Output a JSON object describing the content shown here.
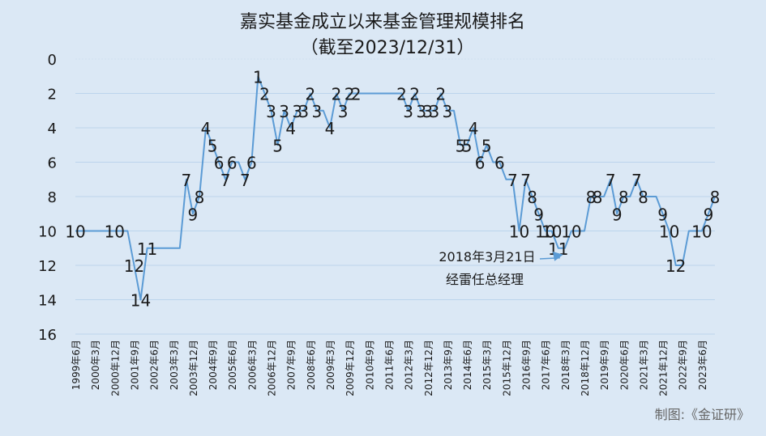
{
  "chart_data": {
    "type": "line",
    "title": "嘉实基金成立以来基金管理规模排名",
    "subtitle": "（截至2023/12/31）",
    "xlabel": "",
    "ylabel": "",
    "y_inverted": true,
    "ylim": [
      0,
      16
    ],
    "y_ticks": [
      0,
      2,
      4,
      6,
      8,
      10,
      12,
      14,
      16
    ],
    "grid": true,
    "legend": "none",
    "x_tick_labels": [
      "1999年6月",
      "2000年3月",
      "2000年12月",
      "2001年9月",
      "2002年6月",
      "2003年3月",
      "2003年12月",
      "2004年9月",
      "2005年6月",
      "2006年3月",
      "2006年12月",
      "2007年9月",
      "2008年6月",
      "2009年3月",
      "2009年12月",
      "2010年9月",
      "2011年6月",
      "2012年3月",
      "2012年12月",
      "2013年9月",
      "2014年6月",
      "2015年3月",
      "2015年12月",
      "2016年9月",
      "2017年6月",
      "2018年3月",
      "2018年12月",
      "2019年9月",
      "2020年6月",
      "2021年3月",
      "2021年12月",
      "2022年9月",
      "2023年6月"
    ],
    "series": [
      {
        "x": [
          "1999年6月",
          "1999年9月",
          "1999年12月",
          "2000年3月",
          "2000年6月",
          "2000年9月",
          "2000年12月",
          "2001年3月",
          "2001年6月",
          "2001年9月",
          "2001年12月",
          "2002年3月",
          "2002年6月",
          "2002年9月",
          "2002年12月",
          "2003年3月",
          "2003年6月",
          "2003年9月",
          "2003年12月",
          "2004年3月",
          "2004年6月",
          "2004年9月",
          "2004年12月",
          "2005年3月",
          "2005年6月",
          "2005年9月",
          "2005年12月",
          "2006年3月",
          "2006年6月",
          "2006年9月",
          "2006年12月",
          "2007年3月",
          "2007年6月",
          "2007年9月",
          "2007年12月",
          "2008年3月",
          "2008年6月",
          "2008年9月",
          "2008年12月",
          "2009年3月",
          "2009年6月",
          "2009年9月",
          "2009年12月",
          "2010年3月",
          "2010年6月",
          "2010年9月",
          "2010年12月",
          "2011年3月",
          "2011年6月",
          "2011年9月",
          "2011年12月",
          "2012年3月",
          "2012年6月",
          "2012年9月",
          "2012年12月",
          "2013年3月",
          "2013年6月",
          "2013年9月",
          "2013年12月",
          "2014年3月",
          "2014年6月",
          "2014年9月",
          "2014年12月",
          "2015年3月",
          "2015年6月",
          "2015年9月",
          "2015年12月",
          "2016年3月",
          "2016年6月",
          "2016年9月",
          "2016年12月",
          "2017年3月",
          "2017年6月",
          "2017年9月",
          "2017年12月",
          "2018年3月",
          "2018年6月",
          "2018年9月",
          "2018年12月",
          "2019年3月",
          "2019年6月",
          "2019年9月",
          "2019年12月",
          "2020年3月",
          "2020年6月",
          "2020年9月",
          "2020年12月",
          "2021年3月",
          "2021年6月",
          "2021年9月",
          "2021年12月",
          "2022年3月",
          "2022年6月",
          "2022年9月",
          "2022年12月",
          "2023年3月",
          "2023年6月",
          "2023年9月",
          "2023年12月"
        ],
        "values": [
          10,
          10,
          10,
          10,
          10,
          10,
          10,
          10,
          10,
          12,
          14,
          11,
          11,
          11,
          11,
          11,
          11,
          7,
          9,
          8,
          4,
          5,
          6,
          7,
          6,
          6,
          7,
          6,
          1,
          2,
          3,
          5,
          3,
          4,
          3,
          3,
          2,
          3,
          3,
          4,
          2,
          3,
          2,
          2,
          2,
          2,
          2,
          2,
          2,
          2,
          2,
          3,
          2,
          3,
          3,
          3,
          2,
          3,
          3,
          5,
          5,
          4,
          6,
          5,
          6,
          6,
          7,
          7,
          10,
          7,
          8,
          9,
          10,
          10,
          11,
          11,
          10,
          10,
          10,
          8,
          8,
          8,
          7,
          9,
          8,
          8,
          7,
          8,
          8,
          8,
          9,
          10,
          12,
          12,
          10,
          10,
          10,
          9,
          8
        ],
        "labels": [
          "10",
          "",
          "",
          "",
          "",
          "",
          "10",
          "",
          "",
          "12",
          "14",
          "11",
          "",
          "",
          "",
          "",
          "",
          "7",
          "9",
          "8",
          "4",
          "5",
          "6",
          "7",
          "6",
          "",
          "7",
          "6",
          "1",
          "2",
          "3",
          "5",
          "3",
          "4",
          "3",
          "3",
          "2",
          "3",
          "",
          "4",
          "2",
          "3",
          "2",
          "2",
          "",
          "",
          "",
          "",
          "",
          "",
          "2",
          "3",
          "2",
          "3",
          "3",
          "3",
          "2",
          "3",
          "",
          "5",
          "5",
          "4",
          "6",
          "5",
          "",
          "6",
          "",
          "7",
          "10",
          "7",
          "8",
          "9",
          "10",
          "10",
          "11",
          "",
          "10",
          "",
          "",
          "8",
          "8",
          "",
          "7",
          "9",
          "8",
          "",
          "7",
          "8",
          "",
          "",
          "9",
          "10",
          "12",
          "",
          "",
          "",
          "10",
          "9",
          "8"
        ]
      }
    ],
    "annotation": {
      "line1": "2018年3月21日",
      "line2": "经雷任总经理",
      "points_to": "2018年3月"
    },
    "source_note": "制图:《金证研》"
  },
  "colors": {
    "background": "#dbe8f5",
    "plot_background": "#ffffff",
    "line": "#5b9bd5",
    "grid": "#bcd4ec",
    "text": "#1a1a1a"
  }
}
